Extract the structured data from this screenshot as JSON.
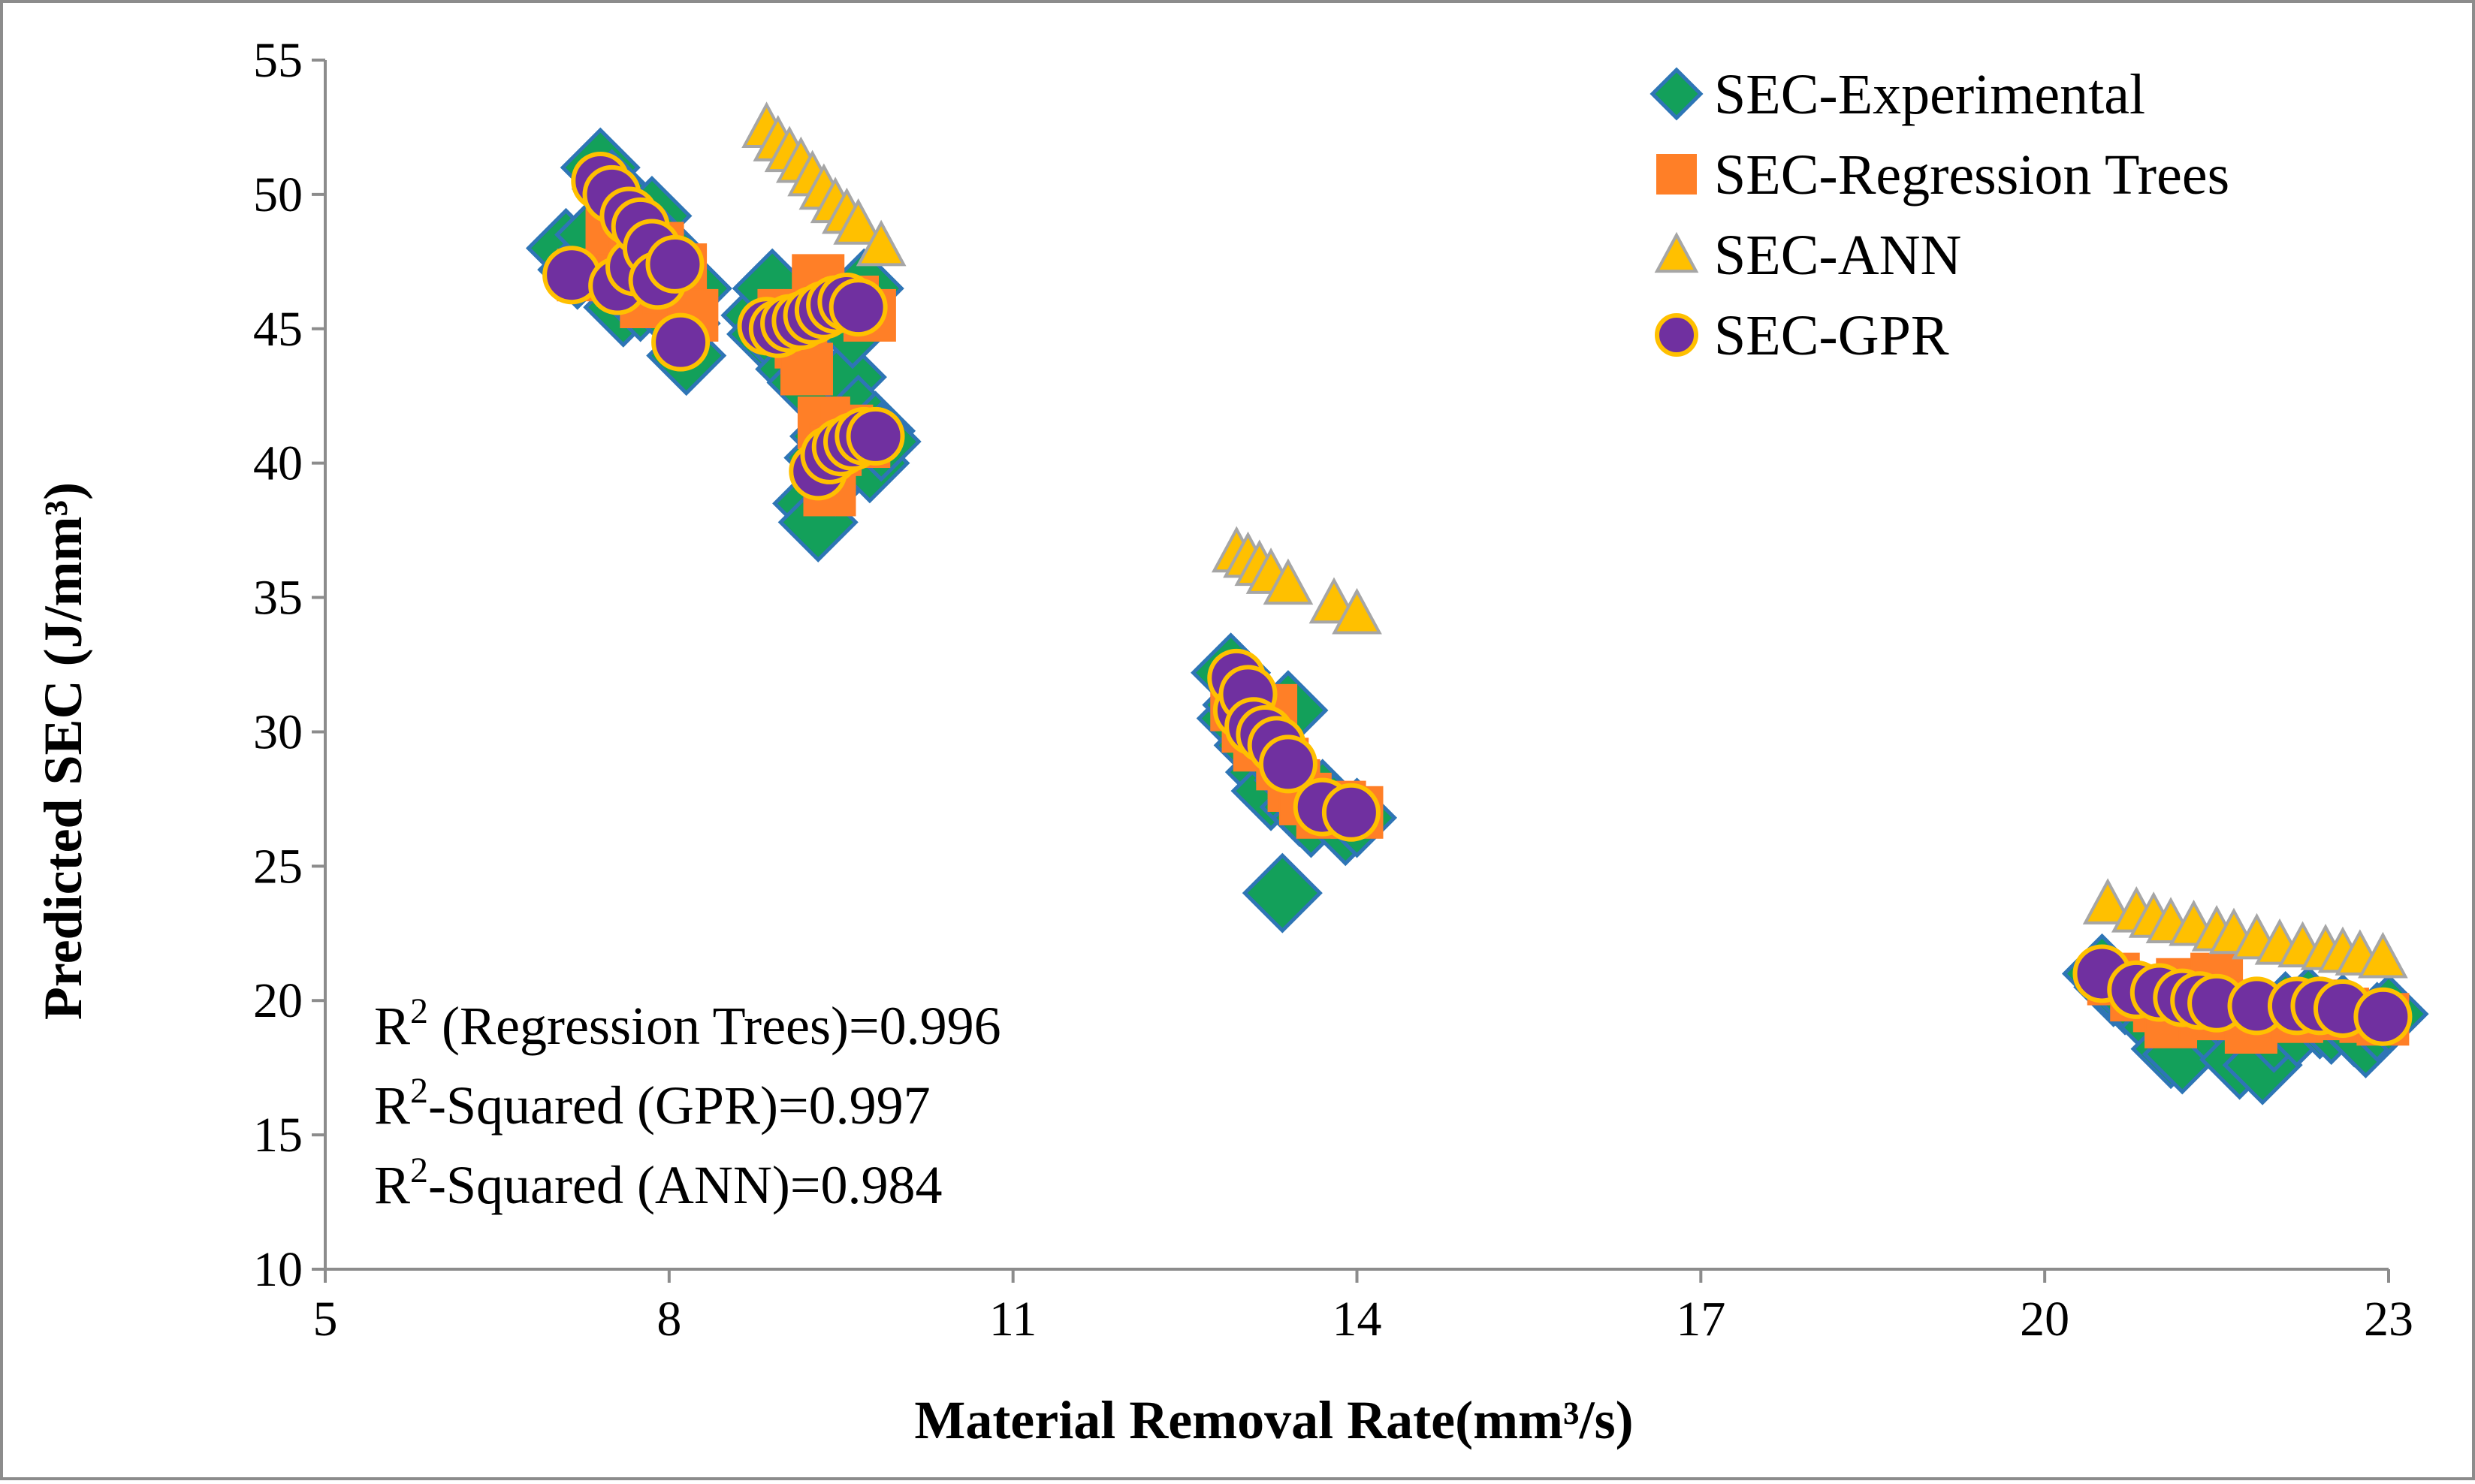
{
  "chart_data": {
    "type": "scatter",
    "title": "",
    "xlabel": "Material Removal Rate(mm³/s)",
    "ylabel": "Predicted  SEC (J/mm³)",
    "xlim": [
      5,
      23
    ],
    "ylim": [
      10,
      55
    ],
    "x_ticks": [
      "5",
      "8",
      "11",
      "14",
      "17",
      "20",
      "23"
    ],
    "y_ticks": [
      "10",
      "15",
      "20",
      "25",
      "30",
      "35",
      "40",
      "45",
      "50",
      "55"
    ],
    "legend_position": "top-right",
    "colors": {
      "experimental": "#13a05a",
      "experimental_edge": "#2e75b6",
      "regression": "#ff7f27",
      "ann": "#ffc000",
      "ann_edge": "#a6a6a6",
      "gpr": "#7030a0",
      "gpr_edge": "#ffc000"
    },
    "series": [
      {
        "name": "SEC-Experimental",
        "marker": "diamond",
        "points": [
          [
            7.1,
            48.0
          ],
          [
            7.2,
            47.2
          ],
          [
            7.35,
            48.5
          ],
          [
            7.4,
            51.0
          ],
          [
            7.5,
            50.2
          ],
          [
            7.55,
            46.5
          ],
          [
            7.6,
            45.8
          ],
          [
            7.65,
            49.5
          ],
          [
            7.7,
            47.5
          ],
          [
            7.75,
            46.0
          ],
          [
            7.8,
            48.6
          ],
          [
            7.85,
            49.2
          ],
          [
            7.9,
            47.8
          ],
          [
            7.95,
            48.0
          ],
          [
            8.0,
            46.8
          ],
          [
            8.05,
            47.0
          ],
          [
            8.1,
            45.2
          ],
          [
            8.15,
            44.0
          ],
          [
            8.2,
            46.5
          ],
          [
            8.8,
            45.5
          ],
          [
            8.85,
            44.8
          ],
          [
            8.9,
            46.5
          ],
          [
            9.0,
            45.0
          ],
          [
            9.05,
            44.2
          ],
          [
            9.1,
            43.5
          ],
          [
            9.2,
            43.0
          ],
          [
            9.25,
            38.5
          ],
          [
            9.3,
            37.8
          ],
          [
            9.35,
            40.2
          ],
          [
            9.4,
            41.0
          ],
          [
            9.45,
            39.5
          ],
          [
            9.5,
            40.5
          ],
          [
            9.55,
            43.2
          ],
          [
            9.6,
            45.0
          ],
          [
            9.65,
            41.8
          ],
          [
            9.7,
            46.5
          ],
          [
            9.75,
            40.0
          ],
          [
            9.8,
            41.2
          ],
          [
            9.85,
            40.8
          ],
          [
            12.9,
            32.2
          ],
          [
            12.95,
            30.5
          ],
          [
            13.0,
            31.0
          ],
          [
            13.1,
            29.5
          ],
          [
            13.15,
            30.2
          ],
          [
            13.2,
            28.5
          ],
          [
            13.25,
            27.8
          ],
          [
            13.3,
            29.0
          ],
          [
            13.35,
            24.0
          ],
          [
            13.4,
            30.8
          ],
          [
            13.45,
            28.2
          ],
          [
            13.5,
            27.2
          ],
          [
            13.6,
            26.8
          ],
          [
            13.7,
            27.5
          ],
          [
            13.8,
            27.0
          ],
          [
            13.9,
            26.5
          ],
          [
            14.0,
            26.8
          ],
          [
            20.5,
            21.0
          ],
          [
            20.6,
            20.5
          ],
          [
            20.7,
            20.2
          ],
          [
            20.8,
            20.0
          ],
          [
            20.9,
            19.5
          ],
          [
            21.0,
            19.0
          ],
          [
            21.1,
            18.2
          ],
          [
            21.2,
            18.0
          ],
          [
            21.3,
            19.8
          ],
          [
            21.4,
            19.2
          ],
          [
            21.5,
            20.1
          ],
          [
            21.6,
            19.4
          ],
          [
            21.7,
            17.8
          ],
          [
            21.8,
            19.0
          ],
          [
            21.9,
            17.6
          ],
          [
            22.0,
            18.8
          ],
          [
            22.1,
            19.6
          ],
          [
            22.2,
            19.0
          ],
          [
            22.3,
            19.8
          ],
          [
            22.4,
            19.3
          ],
          [
            22.5,
            19.1
          ],
          [
            22.6,
            19.5
          ],
          [
            22.7,
            19.0
          ],
          [
            22.8,
            18.6
          ],
          [
            22.9,
            19.2
          ],
          [
            23.0,
            19.5
          ]
        ]
      },
      {
        "name": "SEC-Regression Trees",
        "marker": "square",
        "points": [
          [
            7.25,
            47.0
          ],
          [
            7.5,
            48.5
          ],
          [
            7.6,
            46.8
          ],
          [
            7.7,
            47.5
          ],
          [
            7.8,
            46.0
          ],
          [
            7.9,
            48.0
          ],
          [
            8.0,
            46.5
          ],
          [
            8.1,
            47.2
          ],
          [
            8.2,
            45.5
          ],
          [
            9.0,
            45.5
          ],
          [
            9.15,
            44.5
          ],
          [
            9.2,
            43.5
          ],
          [
            9.3,
            46.8
          ],
          [
            9.35,
            41.5
          ],
          [
            9.4,
            39.0
          ],
          [
            9.45,
            40.5
          ],
          [
            9.55,
            41.2
          ],
          [
            9.6,
            46.0
          ],
          [
            9.7,
            40.8
          ],
          [
            9.75,
            45.5
          ],
          [
            12.95,
            31.0
          ],
          [
            13.05,
            30.2
          ],
          [
            13.15,
            29.5
          ],
          [
            13.25,
            30.8
          ],
          [
            13.35,
            28.8
          ],
          [
            13.45,
            28.0
          ],
          [
            13.55,
            27.5
          ],
          [
            13.7,
            27.0
          ],
          [
            13.85,
            27.2
          ],
          [
            14.0,
            27.0
          ],
          [
            20.6,
            20.8
          ],
          [
            20.8,
            20.2
          ],
          [
            21.0,
            19.8
          ],
          [
            21.1,
            19.2
          ],
          [
            21.2,
            20.6
          ],
          [
            21.4,
            19.5
          ],
          [
            21.5,
            20.8
          ],
          [
            21.6,
            19.8
          ],
          [
            21.8,
            19.0
          ],
          [
            22.0,
            19.6
          ],
          [
            22.2,
            19.4
          ],
          [
            22.4,
            19.8
          ],
          [
            22.6,
            19.5
          ],
          [
            22.8,
            19.4
          ],
          [
            22.95,
            19.3
          ]
        ]
      },
      {
        "name": "SEC-ANN",
        "marker": "triangle",
        "points": [
          [
            8.85,
            52.5
          ],
          [
            8.95,
            52.0
          ],
          [
            9.05,
            51.6
          ],
          [
            9.15,
            51.2
          ],
          [
            9.25,
            50.7
          ],
          [
            9.35,
            50.2
          ],
          [
            9.45,
            49.7
          ],
          [
            9.55,
            49.3
          ],
          [
            9.65,
            48.9
          ],
          [
            9.85,
            48.1
          ],
          [
            12.95,
            36.7
          ],
          [
            13.05,
            36.5
          ],
          [
            13.15,
            36.2
          ],
          [
            13.25,
            35.9
          ],
          [
            13.4,
            35.5
          ],
          [
            13.8,
            34.8
          ],
          [
            14.0,
            34.4
          ],
          [
            20.55,
            23.6
          ],
          [
            20.8,
            23.3
          ],
          [
            20.95,
            23.1
          ],
          [
            21.1,
            22.9
          ],
          [
            21.3,
            22.8
          ],
          [
            21.5,
            22.6
          ],
          [
            21.65,
            22.5
          ],
          [
            21.85,
            22.3
          ],
          [
            22.05,
            22.1
          ],
          [
            22.25,
            22.0
          ],
          [
            22.45,
            21.9
          ],
          [
            22.6,
            21.8
          ],
          [
            22.75,
            21.7
          ],
          [
            22.95,
            21.6
          ]
        ]
      },
      {
        "name": "SEC-GPR",
        "marker": "circle",
        "points": [
          [
            7.15,
            47.0
          ],
          [
            7.4,
            50.5
          ],
          [
            7.5,
            50.0
          ],
          [
            7.55,
            46.6
          ],
          [
            7.65,
            49.2
          ],
          [
            7.7,
            47.3
          ],
          [
            7.75,
            48.8
          ],
          [
            7.85,
            48.0
          ],
          [
            7.9,
            46.8
          ],
          [
            8.05,
            47.4
          ],
          [
            8.1,
            44.5
          ],
          [
            8.85,
            45.1
          ],
          [
            8.95,
            45.0
          ],
          [
            9.05,
            45.2
          ],
          [
            9.15,
            45.3
          ],
          [
            9.25,
            45.5
          ],
          [
            9.35,
            45.7
          ],
          [
            9.45,
            45.9
          ],
          [
            9.55,
            46.0
          ],
          [
            9.65,
            45.8
          ],
          [
            9.3,
            39.7
          ],
          [
            9.4,
            40.3
          ],
          [
            9.5,
            40.6
          ],
          [
            9.6,
            40.8
          ],
          [
            9.7,
            41.0
          ],
          [
            9.8,
            41.0
          ],
          [
            12.95,
            32.0
          ],
          [
            13.0,
            30.8
          ],
          [
            13.05,
            31.4
          ],
          [
            13.1,
            30.2
          ],
          [
            13.2,
            29.9
          ],
          [
            13.3,
            29.5
          ],
          [
            13.4,
            28.8
          ],
          [
            13.7,
            27.2
          ],
          [
            13.95,
            27.0
          ],
          [
            20.5,
            21.0
          ],
          [
            20.8,
            20.4
          ],
          [
            21.0,
            20.3
          ],
          [
            21.2,
            20.1
          ],
          [
            21.35,
            20.0
          ],
          [
            21.5,
            19.9
          ],
          [
            21.85,
            19.8
          ],
          [
            22.2,
            19.8
          ],
          [
            22.4,
            19.8
          ],
          [
            22.6,
            19.7
          ],
          [
            22.95,
            19.4
          ]
        ]
      }
    ],
    "annotations": [
      {
        "prefix": "R",
        "sup": "2",
        "suffix": " (Regression Trees)=0.996"
      },
      {
        "prefix": "R",
        "sup": "2",
        "suffix": "-Squared (GPR)=0.997"
      },
      {
        "prefix": "R",
        "sup": "2",
        "suffix": "-Squared (ANN)=0.984"
      }
    ]
  }
}
